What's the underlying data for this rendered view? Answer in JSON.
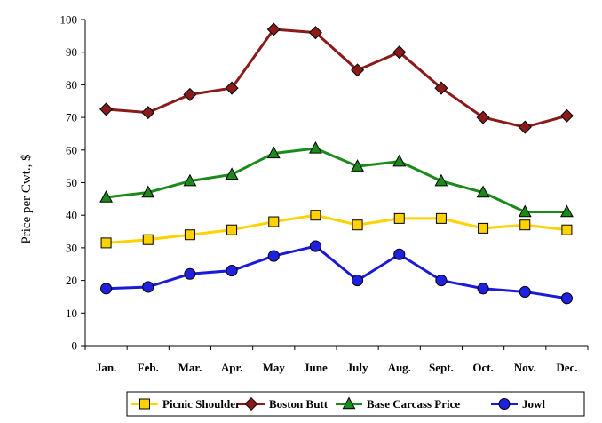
{
  "chart_data": {
    "type": "line",
    "title": "",
    "xlabel": "",
    "ylabel": "Price per Cwt., $",
    "ylim": [
      0,
      100
    ],
    "ytick_step": 10,
    "grid": false,
    "legend_position": "bottom",
    "categories": [
      "Jan.",
      "Feb.",
      "Mar.",
      "Apr.",
      "May",
      "June",
      "July",
      "Aug.",
      "Sept.",
      "Oct.",
      "Nov.",
      "Dec."
    ],
    "series": [
      {
        "name": "Picnic Shoulder",
        "marker": "square",
        "line_color": "#ffd200",
        "marker_fill": "#ffd200",
        "values": [
          31.5,
          32.5,
          34,
          35.5,
          38,
          40,
          37,
          39,
          39,
          36,
          37,
          35.5
        ]
      },
      {
        "name": "Boston Butt",
        "marker": "diamond",
        "line_color": "#8b1a1a",
        "marker_fill": "#8b1a1a",
        "values": [
          72.5,
          71.5,
          77,
          79,
          97,
          96,
          84.5,
          90,
          79,
          70,
          67,
          70.5
        ]
      },
      {
        "name": "Base Carcass Price",
        "marker": "triangle",
        "line_color": "#1a8a1a",
        "marker_fill": "#1a8a1a",
        "values": [
          45.5,
          47,
          50.5,
          52.5,
          59,
          60.5,
          55,
          56.5,
          50.5,
          47,
          41,
          41
        ]
      },
      {
        "name": "Jowl",
        "marker": "circle",
        "line_color": "#1a1ad8",
        "marker_fill": "#2020e0",
        "values": [
          17.5,
          18,
          22,
          23,
          27.5,
          30.5,
          20,
          28,
          20,
          17.5,
          16.5,
          14.5
        ]
      }
    ]
  }
}
